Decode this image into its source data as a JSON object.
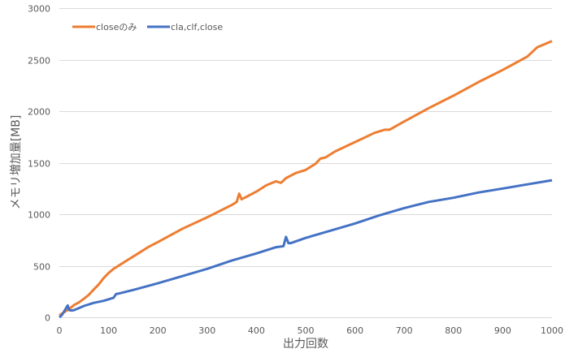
{
  "chart_data": {
    "type": "line",
    "title": "",
    "xlabel": "出力回数",
    "ylabel": "メモリ増加量[MB]",
    "xlim": [
      0,
      1000
    ],
    "ylim": [
      0,
      3000
    ],
    "x_ticks": [
      0,
      100,
      200,
      300,
      400,
      500,
      600,
      700,
      800,
      900,
      1000
    ],
    "y_ticks": [
      0,
      500,
      1000,
      1500,
      2000,
      2500,
      3000
    ],
    "grid": {
      "horizontal": true,
      "vertical": false
    },
    "legend_position": "top-left inside",
    "series": [
      {
        "name": "closeのみ",
        "color": "#ed7d31",
        "x": [
          0,
          10,
          20,
          30,
          40,
          50,
          60,
          70,
          80,
          90,
          100,
          110,
          120,
          140,
          160,
          180,
          200,
          250,
          300,
          350,
          360,
          365,
          370,
          380,
          400,
          420,
          440,
          445,
          450,
          460,
          480,
          500,
          520,
          530,
          540,
          560,
          600,
          640,
          660,
          670,
          700,
          750,
          800,
          850,
          900,
          950,
          970,
          1000
        ],
        "values": [
          20,
          50,
          80,
          120,
          145,
          180,
          220,
          270,
          320,
          380,
          430,
          470,
          500,
          560,
          620,
          680,
          730,
          860,
          970,
          1090,
          1120,
          1200,
          1145,
          1170,
          1220,
          1280,
          1320,
          1310,
          1305,
          1350,
          1400,
          1430,
          1490,
          1540,
          1550,
          1610,
          1700,
          1790,
          1820,
          1820,
          1900,
          2030,
          2150,
          2280,
          2400,
          2530,
          2620,
          2680
        ]
      },
      {
        "name": "cla,clf,close",
        "color": "#4472c4",
        "x": [
          0,
          5,
          10,
          15,
          17,
          20,
          25,
          30,
          40,
          50,
          70,
          90,
          110,
          115,
          120,
          150,
          200,
          250,
          300,
          350,
          400,
          440,
          455,
          460,
          465,
          470,
          500,
          550,
          600,
          650,
          700,
          750,
          800,
          850,
          900,
          950,
          1000
        ],
        "values": [
          0,
          20,
          60,
          100,
          115,
          70,
          65,
          70,
          90,
          110,
          140,
          160,
          190,
          225,
          230,
          265,
          330,
          400,
          470,
          550,
          620,
          680,
          690,
          780,
          720,
          720,
          770,
          840,
          910,
          990,
          1060,
          1120,
          1160,
          1210,
          1250,
          1290,
          1330
        ]
      }
    ]
  },
  "legend": {
    "items": [
      {
        "label": "closeのみ",
        "color": "#ed7d31"
      },
      {
        "label": "cla,clf,close",
        "color": "#4472c4"
      }
    ]
  },
  "axes": {
    "x_title": "出力回数",
    "y_title": "メモリ増加量[MB]",
    "x_tick_labels": [
      "0",
      "100",
      "200",
      "300",
      "400",
      "500",
      "600",
      "700",
      "800",
      "900",
      "1000"
    ],
    "y_tick_labels": [
      "0",
      "500",
      "1000",
      "1500",
      "2000",
      "2500",
      "3000"
    ]
  }
}
